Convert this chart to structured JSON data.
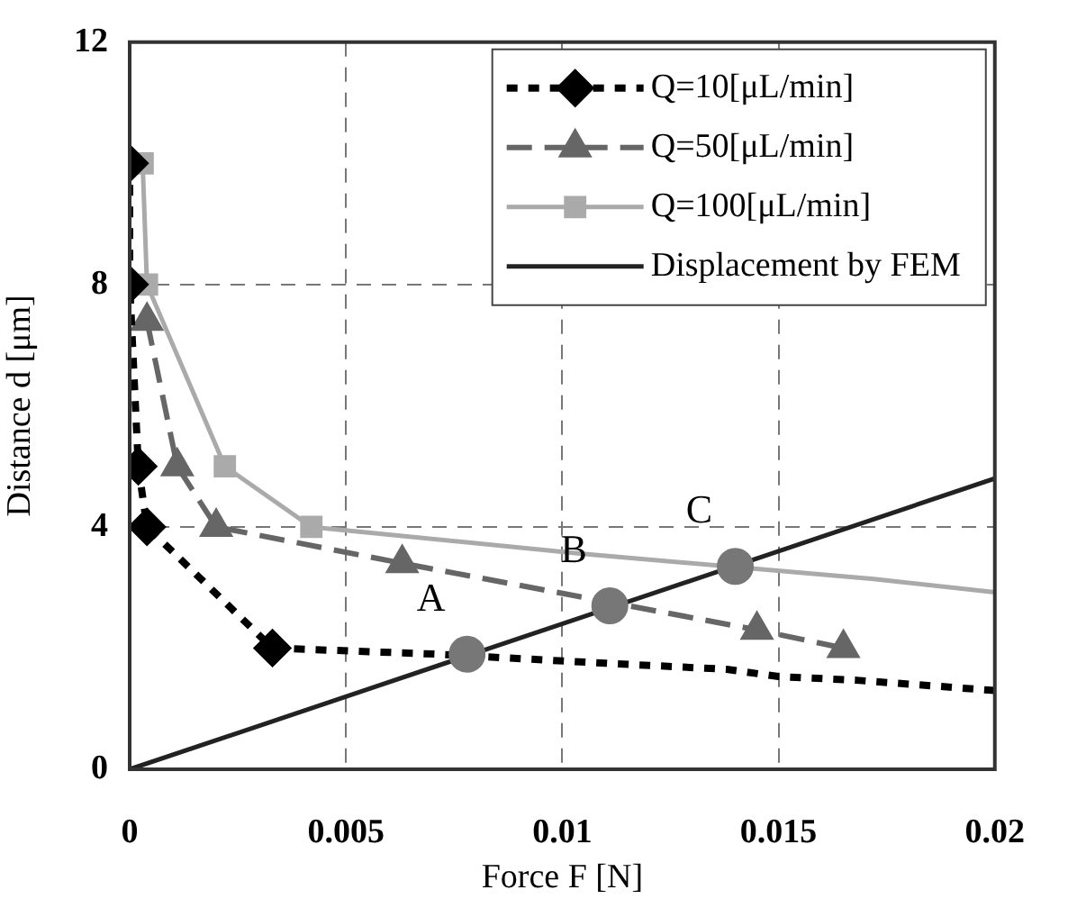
{
  "chart_data": {
    "type": "line",
    "xlabel": "Force F [N]",
    "ylabel": "Distance d [μm]",
    "xlim": [
      0,
      0.02
    ],
    "ylim": [
      0,
      12
    ],
    "xticks": [
      0,
      0.005,
      0.01,
      0.015,
      0.02
    ],
    "yticks": [
      0,
      4,
      8,
      12
    ],
    "grid": true,
    "legend": "top right",
    "series": [
      {
        "name": "Q=10[μL/min]",
        "color": "#000000",
        "marker": "diamond",
        "line_style": "dotted",
        "x": [
          0,
          0,
          0.0002,
          0.0004,
          0.0033
        ],
        "values": [
          10,
          8,
          5,
          4,
          2
        ]
      },
      {
        "color": "#000000",
        "marker": "none",
        "line_style": "dotted",
        "x": [
          0.0033,
          0.0071,
          0.011,
          0.0138,
          0.015,
          0.0168,
          0.02
        ],
        "values": [
          2,
          1.9,
          1.75,
          1.65,
          1.53,
          1.47,
          1.3
        ]
      },
      {
        "name": "Q=50[μL/min]",
        "color": "#666666",
        "marker": "triangle",
        "line_style": "dashed",
        "x": [
          0.0004,
          0.0011,
          0.002,
          0.0063,
          0.0145,
          0.0165
        ],
        "values": [
          7.4,
          5,
          4,
          3.4,
          2.3,
          2
        ]
      },
      {
        "name": "Q=100[μL/min]",
        "color": "#aaaaaa",
        "marker": "square",
        "line_style": "solid",
        "x": [
          0.0003,
          0.0004,
          0.0022,
          0.0042
        ],
        "values": [
          10,
          8,
          5,
          4
        ]
      },
      {
        "color": "#aaaaaa",
        "marker": "none",
        "line_style": "solid",
        "x": [
          0.0042,
          0.0104,
          0.0172,
          0.02
        ],
        "values": [
          4,
          3.56,
          3.14,
          2.92
        ]
      },
      {
        "name": "Displacement by FEM",
        "color": "#222222",
        "marker": "none",
        "line_style": "solid",
        "x": [
          0,
          0.02
        ],
        "values": [
          0,
          4.8
        ]
      },
      {
        "type": "scatter",
        "color": "#777777",
        "marker": "circle",
        "x": [
          0.0078,
          0.0111,
          0.014
        ],
        "values": [
          1.9,
          2.7,
          3.35
        ]
      }
    ],
    "annotations": [
      {
        "text": "A",
        "x": 0.0078,
        "y": 1.9
      },
      {
        "text": "B",
        "x": 0.0111,
        "y": 2.7
      },
      {
        "text": "C",
        "x": 0.014,
        "y": 3.35
      }
    ]
  }
}
